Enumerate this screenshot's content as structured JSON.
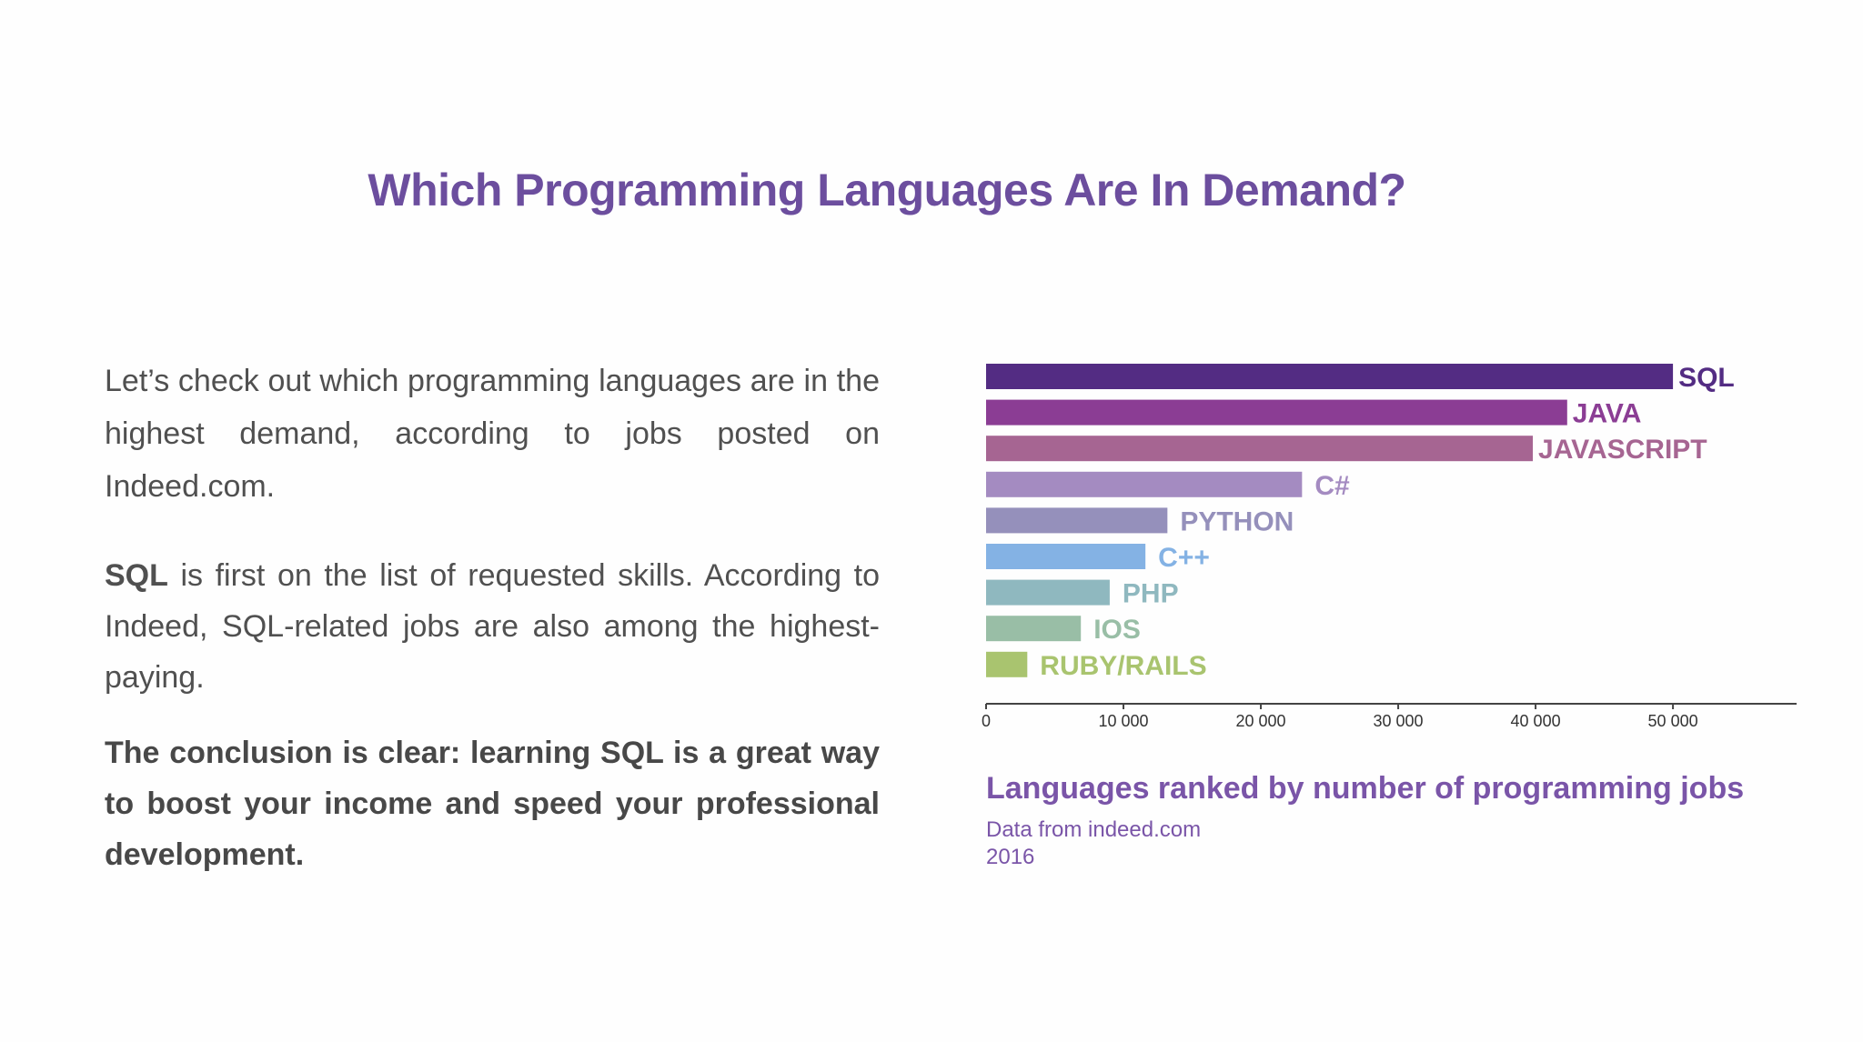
{
  "title": "Which Programming Languages Are In Demand?",
  "intro": "Let’s check out which programming languages are in the highest demand, according to jobs posted on Indeed.com.",
  "sql_para": {
    "bold": "SQL",
    "rest": " is first on the list of requested skills. According to Indeed, SQL-related jobs are also among the highest-paying."
  },
  "conclusion": "The conclusion is clear: learning SQL is a great way to boost your income and speed your professional development.",
  "chart_data": {
    "type": "bar",
    "orientation": "horizontal",
    "categories": [
      "SQL",
      "JAVA",
      "JAVASCRIPT",
      "C#",
      "PYTHON",
      "C++",
      "PHP",
      "IOS",
      "RUBY/RAILS"
    ],
    "values": [
      50000,
      42300,
      39800,
      23000,
      13200,
      11600,
      9000,
      6900,
      3000
    ],
    "colors": [
      "#532c83",
      "#8b3d94",
      "#a66592",
      "#a48bc1",
      "#9590bb",
      "#84b2e4",
      "#8fb8bf",
      "#99bea6",
      "#a9c46f"
    ],
    "xticks": [
      "0",
      "10 000",
      "20 000",
      "30 000",
      "40 000",
      "50 000"
    ],
    "xlim": [
      0,
      59000
    ],
    "grid": false,
    "caption": "Languages ranked by number of programming jobs",
    "source": [
      "Data from indeed.com",
      "2016"
    ]
  }
}
